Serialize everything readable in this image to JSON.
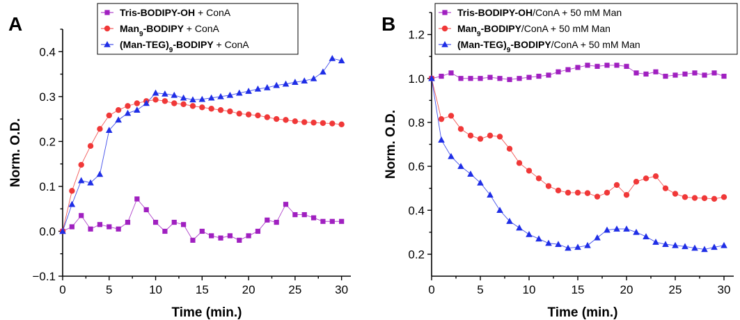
{
  "chart_data": [
    {
      "type": "line",
      "panel_label": "A",
      "xlabel": "Time (min.)",
      "ylabel": "Norm. O.D.",
      "xlim": [
        0,
        31
      ],
      "ylim": [
        -0.1,
        0.45
      ],
      "xticks": [
        0,
        5,
        10,
        15,
        20,
        25,
        30
      ],
      "yticks": [
        -0.1,
        0.0,
        0.1,
        0.2,
        0.3,
        0.4
      ],
      "ytick_labels": [
        "−0.1",
        "0.0",
        "0.1",
        "0.2",
        "0.3",
        "0.4"
      ],
      "grid": false,
      "legend_position": "top-center",
      "series": [
        {
          "name": "Tris-BODIPY-OH + ConA",
          "name_parts": [
            {
              "t": "Tris-BODIPY-OH",
              "b": true
            },
            {
              "t": " + ConA",
              "b": false
            }
          ],
          "color": "#A020C0",
          "marker": "square",
          "x": [
            0,
            1,
            2,
            3,
            4,
            5,
            6,
            7,
            8,
            9,
            10,
            11,
            12,
            13,
            14,
            15,
            16,
            17,
            18,
            19,
            20,
            21,
            22,
            23,
            24,
            25,
            26,
            27,
            28,
            29,
            30
          ],
          "y": [
            0.0,
            0.01,
            0.035,
            0.005,
            0.015,
            0.01,
            0.005,
            0.02,
            0.072,
            0.048,
            0.02,
            0.0,
            0.02,
            0.015,
            -0.02,
            0.0,
            -0.01,
            -0.015,
            -0.01,
            -0.02,
            -0.01,
            0.0,
            0.025,
            0.02,
            0.06,
            0.037,
            0.037,
            0.03,
            0.022,
            0.022,
            0.022
          ]
        },
        {
          "name": "Man9-BODIPY + ConA",
          "name_parts": [
            {
              "t": "Man",
              "b": true
            },
            {
              "t": "9",
              "b": true,
              "sub": true
            },
            {
              "t": "-BODIPY",
              "b": true
            },
            {
              "t": " + ConA",
              "b": false
            }
          ],
          "color": "#F03838",
          "marker": "circle",
          "x": [
            0,
            1,
            2,
            3,
            4,
            5,
            6,
            7,
            8,
            9,
            10,
            11,
            12,
            13,
            14,
            15,
            16,
            17,
            18,
            19,
            20,
            21,
            22,
            23,
            24,
            25,
            26,
            27,
            28,
            29,
            30
          ],
          "y": [
            0.0,
            0.09,
            0.148,
            0.19,
            0.228,
            0.258,
            0.27,
            0.279,
            0.285,
            0.29,
            0.293,
            0.29,
            0.285,
            0.283,
            0.279,
            0.276,
            0.273,
            0.27,
            0.267,
            0.262,
            0.26,
            0.258,
            0.254,
            0.25,
            0.248,
            0.245,
            0.243,
            0.242,
            0.241,
            0.24,
            0.238
          ]
        },
        {
          "name": "(Man-TEG)9-BODIPY + ConA",
          "name_parts": [
            {
              "t": "(Man-TEG)",
              "b": true
            },
            {
              "t": "9",
              "b": true,
              "sub": true
            },
            {
              "t": "-BODIPY",
              "b": true
            },
            {
              "t": " + ConA",
              "b": false
            }
          ],
          "color": "#1F2EE6",
          "marker": "triangle",
          "x": [
            0,
            1,
            2,
            3,
            4,
            5,
            6,
            7,
            8,
            9,
            10,
            11,
            12,
            13,
            14,
            15,
            16,
            17,
            18,
            19,
            20,
            21,
            22,
            23,
            24,
            25,
            26,
            27,
            28,
            29,
            30
          ],
          "y": [
            0.0,
            0.06,
            0.113,
            0.108,
            0.127,
            0.225,
            0.248,
            0.263,
            0.27,
            0.285,
            0.308,
            0.306,
            0.303,
            0.297,
            0.293,
            0.294,
            0.297,
            0.3,
            0.303,
            0.308,
            0.312,
            0.317,
            0.32,
            0.325,
            0.328,
            0.332,
            0.335,
            0.34,
            0.355,
            0.385,
            0.38
          ]
        }
      ]
    },
    {
      "type": "line",
      "panel_label": "B",
      "xlabel": "Time (min.)",
      "ylabel": "Norm. O.D.",
      "xlim": [
        0,
        31
      ],
      "ylim": [
        0.1,
        1.3
      ],
      "xticks": [
        0,
        5,
        10,
        15,
        20,
        25,
        30
      ],
      "yticks": [
        0.2,
        0.4,
        0.6,
        0.8,
        1.0,
        1.2
      ],
      "ytick_labels": [
        "0.2",
        "0.4",
        "0.6",
        "0.8",
        "1.0",
        "1.2"
      ],
      "grid": false,
      "legend_position": "top-right",
      "series": [
        {
          "name": "Tris-BODIPY-OH/ConA + 50 mM Man",
          "name_parts": [
            {
              "t": "Tris-BODIPY-OH",
              "b": true
            },
            {
              "t": "/ConA + 50 mM Man",
              "b": false
            }
          ],
          "color": "#A020C0",
          "marker": "square",
          "x": [
            0,
            1,
            2,
            3,
            4,
            5,
            6,
            7,
            8,
            9,
            10,
            11,
            12,
            13,
            14,
            15,
            16,
            17,
            18,
            19,
            20,
            21,
            22,
            23,
            24,
            25,
            26,
            27,
            28,
            29,
            30
          ],
          "y": [
            1.0,
            1.01,
            1.025,
            1.0,
            1.0,
            1.0,
            1.005,
            1.0,
            0.995,
            1.0,
            1.005,
            1.01,
            1.015,
            1.03,
            1.04,
            1.05,
            1.06,
            1.055,
            1.06,
            1.06,
            1.055,
            1.025,
            1.02,
            1.03,
            1.01,
            1.015,
            1.02,
            1.025,
            1.015,
            1.025,
            1.01
          ]
        },
        {
          "name": "Man9-BODIPY/ConA + 50 mM Man",
          "name_parts": [
            {
              "t": "Man",
              "b": true
            },
            {
              "t": "9",
              "b": true,
              "sub": true
            },
            {
              "t": "-BODIPY",
              "b": true
            },
            {
              "t": "/ConA + 50 mM Man",
              "b": false
            }
          ],
          "color": "#F03838",
          "marker": "circle",
          "x": [
            0,
            1,
            2,
            3,
            4,
            5,
            6,
            7,
            8,
            9,
            10,
            11,
            12,
            13,
            14,
            15,
            16,
            17,
            18,
            19,
            20,
            21,
            22,
            23,
            24,
            25,
            26,
            27,
            28,
            29,
            30
          ],
          "y": [
            1.0,
            0.815,
            0.83,
            0.77,
            0.74,
            0.725,
            0.74,
            0.735,
            0.68,
            0.615,
            0.58,
            0.545,
            0.51,
            0.49,
            0.48,
            0.48,
            0.478,
            0.462,
            0.48,
            0.515,
            0.47,
            0.53,
            0.545,
            0.555,
            0.5,
            0.475,
            0.46,
            0.456,
            0.455,
            0.452,
            0.46
          ]
        },
        {
          "name": "(Man-TEG)9-BODIPY/ConA + 50 mM Man",
          "name_parts": [
            {
              "t": "(Man-TEG)",
              "b": true
            },
            {
              "t": "9",
              "b": true,
              "sub": true
            },
            {
              "t": "-BODIPY",
              "b": true
            },
            {
              "t": "/ConA + 50 mM Man",
              "b": false
            }
          ],
          "color": "#1F2EE6",
          "marker": "triangle",
          "x": [
            0,
            1,
            2,
            3,
            4,
            5,
            6,
            7,
            8,
            9,
            10,
            11,
            12,
            13,
            14,
            15,
            16,
            17,
            18,
            19,
            20,
            21,
            22,
            23,
            24,
            25,
            26,
            27,
            28,
            29,
            30
          ],
          "y": [
            1.0,
            0.72,
            0.645,
            0.6,
            0.565,
            0.525,
            0.47,
            0.4,
            0.35,
            0.32,
            0.29,
            0.27,
            0.25,
            0.245,
            0.228,
            0.232,
            0.24,
            0.275,
            0.31,
            0.315,
            0.315,
            0.3,
            0.28,
            0.255,
            0.245,
            0.24,
            0.235,
            0.228,
            0.222,
            0.232,
            0.24
          ]
        }
      ]
    }
  ]
}
